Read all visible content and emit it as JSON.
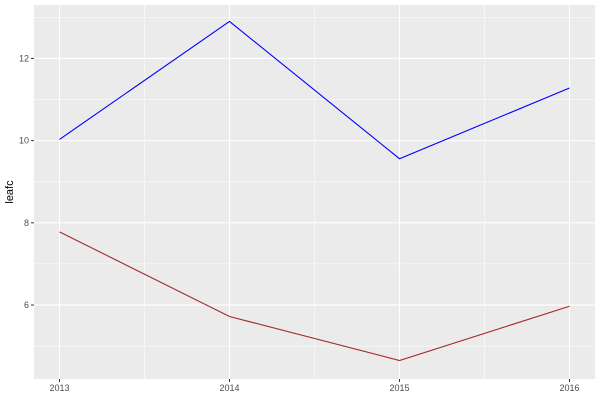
{
  "chart_data": {
    "type": "line",
    "title": "",
    "xlabel": "",
    "ylabel": "leafc",
    "x": [
      2013,
      2014,
      2015,
      2016
    ],
    "x_ticks": [
      "2013",
      "2014",
      "2015",
      "2016"
    ],
    "y_ticks": [
      "6",
      "8",
      "10",
      "12"
    ],
    "xlim": [
      2012.85,
      2016.15
    ],
    "ylim": [
      4.2,
      13.3
    ],
    "grid": true,
    "legend": "none",
    "panel_background": "#EBEBEB",
    "series": [
      {
        "color": "#0000FF",
        "values": [
          10.03,
          12.9,
          9.56,
          11.28
        ]
      },
      {
        "color": "#A52A2A",
        "values": [
          7.78,
          5.72,
          4.65,
          5.97
        ]
      }
    ]
  }
}
